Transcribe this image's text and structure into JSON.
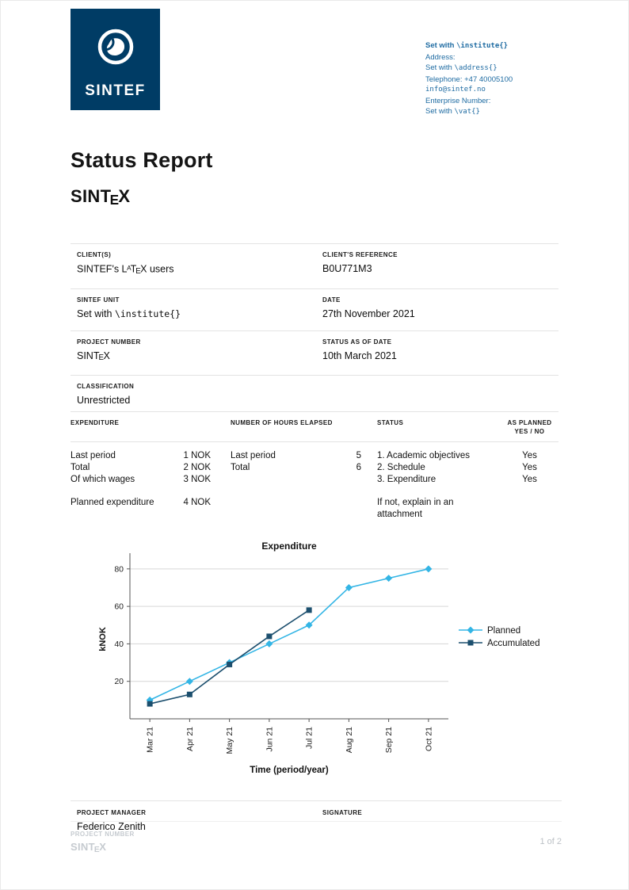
{
  "colors": {
    "brand_navy": "#003C65",
    "contact_blue": "#1E6BA2",
    "planned_line": "#33B5E5",
    "accumulated_line": "#1C4F6E"
  },
  "logo": {
    "text": "SINTEF"
  },
  "contact": {
    "institute_pre": "Set with ",
    "institute_mono": "\\institute{}",
    "address_label": "Address:",
    "address_pre": "Set with ",
    "address_mono": "\\address{}",
    "telephone": "Telephone: +47  40005100",
    "email": "info@sintef.no",
    "enterprise_label": "Enterprise Number:",
    "vat_pre": "Set with ",
    "vat_mono": "\\vat{}"
  },
  "title": "Status Report",
  "project_logo": {
    "pre": "SINT",
    "sub": "E",
    "post": "X"
  },
  "details": {
    "r1": {
      "ll": "CLIENT(S)",
      "lv": {
        "p1": "SINTEF's L",
        "sup": "A",
        "p2": "T",
        "sub": "E",
        "p3": "X users"
      },
      "rl": "CLIENT'S REFERENCE",
      "rv": "B0U771M3"
    },
    "r2": {
      "ll": "SINTEF UNIT",
      "lv_pre": "Set with ",
      "lv_mono": "\\institute{}",
      "rl": "DATE",
      "rv": "27th November 2021"
    },
    "r3": {
      "ll": "PROJECT NUMBER",
      "lv": {
        "p1": "SINT",
        "sub": "E",
        "p2": "X"
      },
      "rl": "STATUS AS OF DATE",
      "rv": "10th March 2021"
    },
    "r4": {
      "ll": "CLASSIFICATION",
      "lv": "Unrestricted"
    }
  },
  "status_table": {
    "h_expenditure": "EXPENDITURE",
    "h_hours": "NUMBER OF HOURS ELAPSED",
    "h_status": "STATUS",
    "as_planned": {
      "line1": "AS PLANNED",
      "line2": "YES / NO"
    },
    "expenditure_rows": [
      {
        "label": "Last period",
        "value": "1 NOK"
      },
      {
        "label": "Total",
        "value": "2 NOK"
      },
      {
        "label": "Of which wages",
        "value": "3 NOK"
      }
    ],
    "planned_row": {
      "label": "Planned expenditure",
      "value": "4 NOK"
    },
    "hours_rows": [
      {
        "label": "Last period",
        "value": "5"
      },
      {
        "label": "Total",
        "value": "6"
      }
    ],
    "status_rows": [
      {
        "label": "1. Academic objectives",
        "planned": "Yes"
      },
      {
        "label": "2. Schedule",
        "planned": "Yes"
      },
      {
        "label": "3. Expenditure",
        "planned": "Yes"
      }
    ],
    "note": "If not, explain in an attachment"
  },
  "chart_data": {
    "type": "line",
    "title": "Expenditure",
    "xlabel": "Time (period/year)",
    "ylabel": "kNOK",
    "categories": [
      "Mar 21",
      "Apr 21",
      "May 21",
      "Jun 21",
      "Jul 21",
      "Aug 21",
      "Sep 21",
      "Oct 21"
    ],
    "series": [
      {
        "name": "Planned",
        "values": [
          10,
          20,
          30,
          40,
          50,
          70,
          75,
          80
        ],
        "color": "#33B5E5",
        "marker": "diamond"
      },
      {
        "name": "Accumulated",
        "values": [
          8,
          13,
          29,
          44,
          58
        ],
        "color": "#1C4F6E",
        "marker": "square"
      }
    ],
    "ylim": [
      0,
      85
    ],
    "yticks": [
      20,
      40,
      60,
      80
    ],
    "grid": true,
    "legend_position": "right"
  },
  "signature": {
    "manager_label": "PROJECT MANAGER",
    "manager_name": "Federico Zenith",
    "signature_label": "SIGNATURE"
  },
  "footer": {
    "label": "PROJECT NUMBER",
    "project": {
      "pre": "SINT",
      "sub": "E",
      "post": "X"
    },
    "page": "1 of 2"
  }
}
